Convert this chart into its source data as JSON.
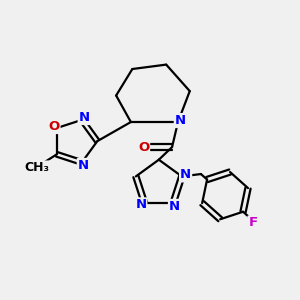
{
  "bg_color": "#f0f0f0",
  "bond_color": "#000000",
  "N_color": "#0000ff",
  "O_color": "#cc0000",
  "F_color": "#cc00cc",
  "line_width": 1.6,
  "font_size": 9.5,
  "fig_w": 3.0,
  "fig_h": 3.0,
  "dpi": 100,
  "xlim": [
    0.0,
    1.0
  ],
  "ylim": [
    0.0,
    1.0
  ]
}
